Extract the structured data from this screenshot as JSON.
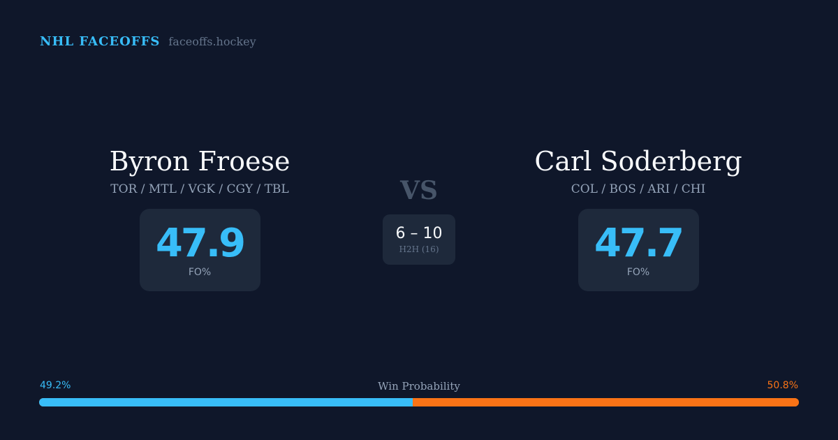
{
  "brand": {
    "name": "NHL FACEOFFS",
    "url": "faceoffs.hockey"
  },
  "left": {
    "name": "Byron Froese",
    "teams": "TOR / MTL / VGK / CGY / TBL",
    "fo_pct": "47.9",
    "fo_label": "FO%"
  },
  "right": {
    "name": "Carl Soderberg",
    "teams": "COL / BOS / ARI / CHI",
    "fo_pct": "47.7",
    "fo_label": "FO%"
  },
  "vs": "VS",
  "h2h": {
    "score": "6 – 10",
    "label": "H2H (16)"
  },
  "win_probability": {
    "title": "Win Probability",
    "left_label": "49.2%",
    "right_label": "50.8%",
    "left_value": 49.2,
    "right_value": 50.8,
    "left_color": "#38bdf8",
    "right_color": "#f97316"
  }
}
